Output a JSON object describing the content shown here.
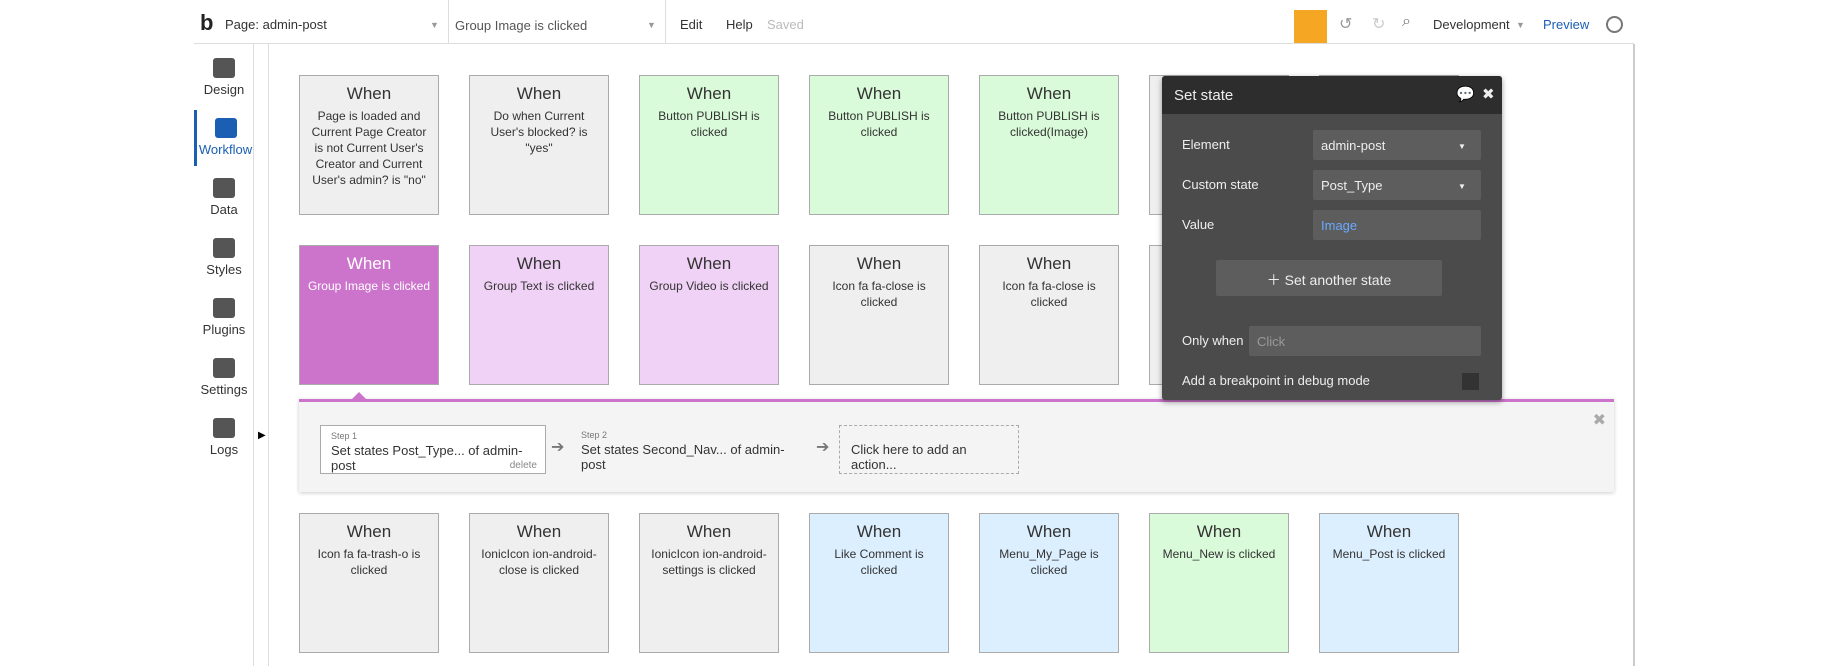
{
  "header": {
    "page": "Page: admin-post",
    "event": "Group Image is clicked",
    "menu": [
      "Edit",
      "Help"
    ],
    "status": "Saved",
    "environment": "Development",
    "preview": "Preview"
  },
  "sidebar": [
    "Design",
    "Workflow",
    "Data",
    "Styles",
    "Plugins",
    "Settings",
    "Logs"
  ],
  "events": [
    [
      {
        "title": "When",
        "label": "Page is loaded and Current Page Creator is not Current User's Creator and Current User's admin? is \"no\"",
        "color": "#efefef"
      },
      {
        "title": "When",
        "label": "Do when Current User's blocked? is \"yes\"",
        "color": "#efefef"
      },
      {
        "title": "When",
        "label": "Button PUBLISH is clicked",
        "color": "#d9fbd9"
      },
      {
        "title": "When",
        "label": "Button PUBLISH is clicked",
        "color": "#d9fbd9"
      },
      {
        "title": "When",
        "label": "Button PUBLISH is clicked(Image)",
        "color": "#d9fbd9"
      }
    ],
    [
      {
        "title": "When",
        "label": "Group Image is clicked",
        "color": "#cc74cc"
      },
      {
        "title": "When",
        "label": "Group Text is clicked",
        "color": "#f0d2f6"
      },
      {
        "title": "When",
        "label": "Group Video is clicked",
        "color": "#f0d2f6"
      },
      {
        "title": "When",
        "label": "Icon fa fa-close is clicked",
        "color": "#efefef"
      },
      {
        "title": "When",
        "label": "Icon fa fa-close is clicked",
        "color": "#efefef"
      }
    ],
    [
      {
        "title": "When",
        "label": "Icon fa fa-trash-o is clicked",
        "color": "#efefef"
      },
      {
        "title": "When",
        "label": "IonicIcon ion-android-close is clicked",
        "color": "#efefef"
      },
      {
        "title": "When",
        "label": "IonicIcon ion-android-settings is clicked",
        "color": "#efefef"
      },
      {
        "title": "When",
        "label": "Like Comment is clicked",
        "color": "#dcefff"
      },
      {
        "title": "When",
        "label": "Menu_My_Page is clicked",
        "color": "#dcefff"
      },
      {
        "title": "When",
        "label": "Menu_New is clicked",
        "color": "#d9fbd9"
      },
      {
        "title": "When",
        "label": "Menu_Post is clicked",
        "color": "#dcefff"
      }
    ]
  ],
  "workflow": {
    "steps": [
      {
        "step": "Step 1",
        "action": "Set states Post_Type... of admin-post",
        "delete": "delete"
      },
      {
        "step": "Step 2",
        "action": "Set states Second_Nav... of admin-post"
      }
    ],
    "add": "Click here to add an action..."
  },
  "popup": {
    "title": "Set state",
    "fields": [
      {
        "label": "Element",
        "value": "admin-post"
      },
      {
        "label": "Custom state",
        "value": "Post_Type"
      },
      {
        "label": "Value",
        "value": "Image"
      }
    ],
    "button": "Set another state",
    "only_when": "Only when",
    "placeholder": "Click",
    "breakpoint": "Add a breakpoint in debug mode"
  }
}
